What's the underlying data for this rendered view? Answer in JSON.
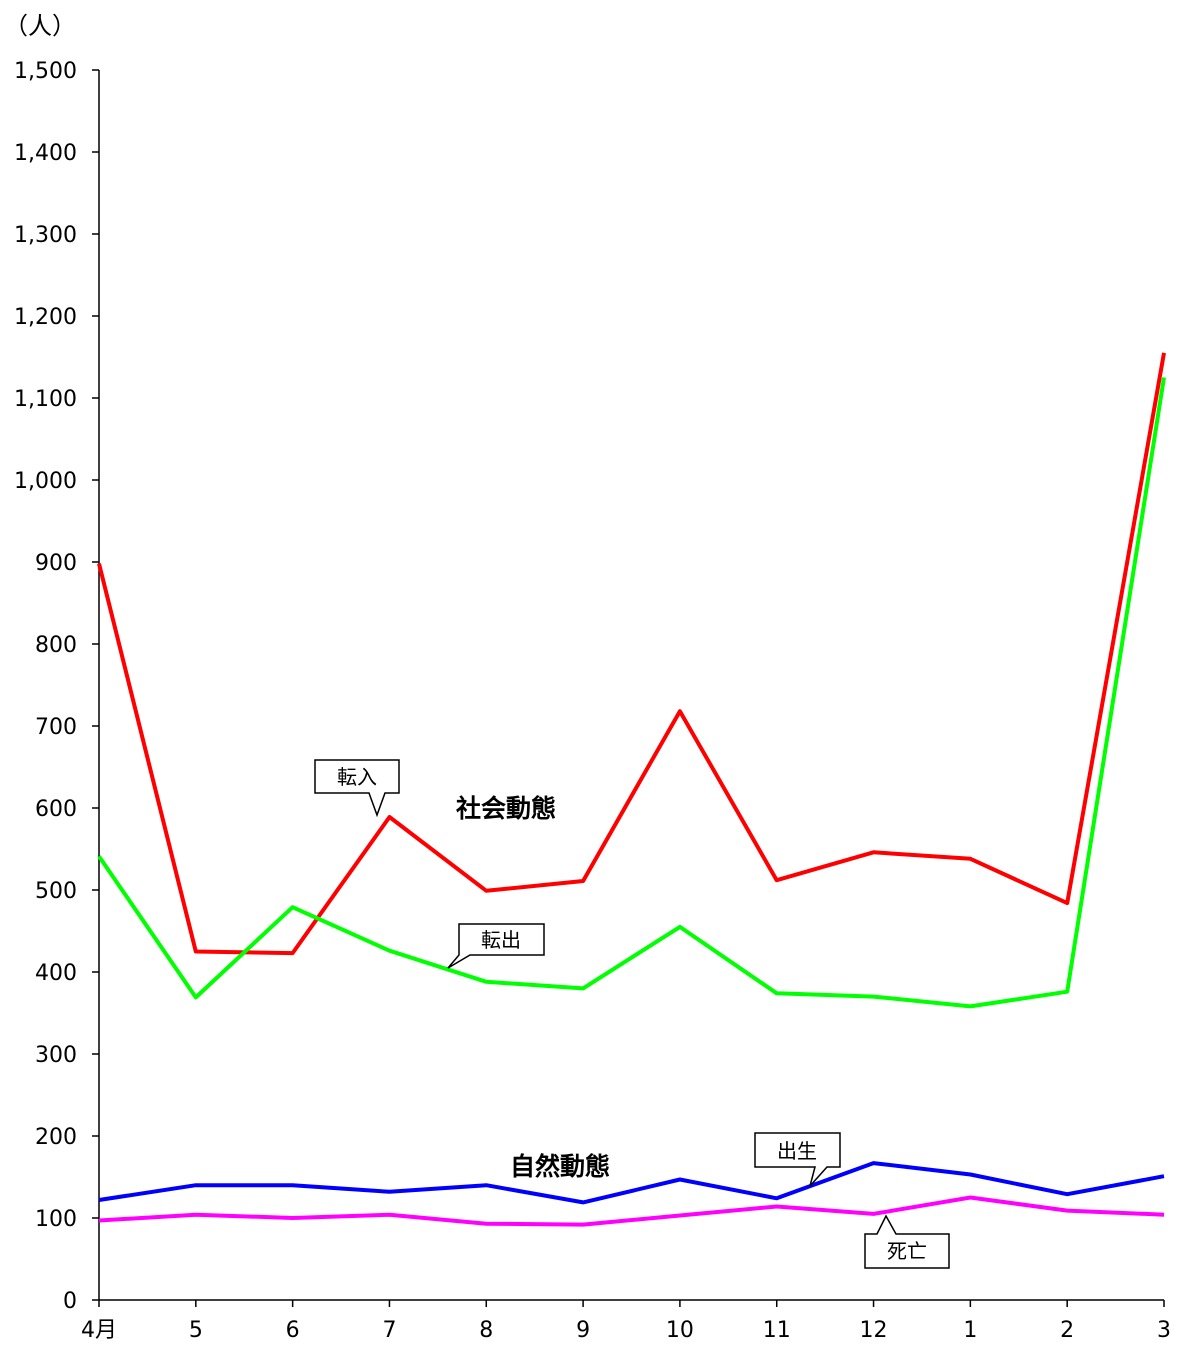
{
  "chart_data": {
    "type": "line",
    "unit_label": "（人）",
    "x": [
      "4月",
      "5",
      "6",
      "7",
      "8",
      "9",
      "10",
      "11",
      "12",
      "1",
      "2",
      "3"
    ],
    "ylim": [
      0,
      1500
    ],
    "y_ticks": [
      0,
      100,
      200,
      300,
      400,
      500,
      600,
      700,
      800,
      900,
      1000,
      1100,
      1200,
      1300,
      1400,
      1500
    ],
    "y_tick_labels": [
      "0",
      "100",
      "200",
      "300",
      "400",
      "500",
      "600",
      "700",
      "800",
      "900",
      "1,000",
      "1,100",
      "1,200",
      "1,300",
      "1,400",
      "1,500"
    ],
    "grid": false,
    "series": [
      {
        "name": "転入",
        "color": "#ff0000",
        "values": [
          898,
          425,
          423,
          589,
          499,
          511,
          718,
          512,
          546,
          538,
          484,
          1155
        ]
      },
      {
        "name": "転出",
        "color": "#00ff00",
        "values": [
          541,
          369,
          479,
          426,
          388,
          380,
          455,
          374,
          370,
          358,
          376,
          1125
        ]
      },
      {
        "name": "出生",
        "color": "#0000ff",
        "values": [
          122,
          140,
          140,
          132,
          140,
          119,
          147,
          124,
          167,
          153,
          129,
          151
        ]
      },
      {
        "name": "死亡",
        "color": "#ff00ff",
        "values": [
          97,
          104,
          100,
          104,
          93,
          92,
          103,
          114,
          105,
          125,
          109,
          104
        ]
      }
    ],
    "group_labels": [
      "社会動態",
      "自然動態"
    ]
  }
}
